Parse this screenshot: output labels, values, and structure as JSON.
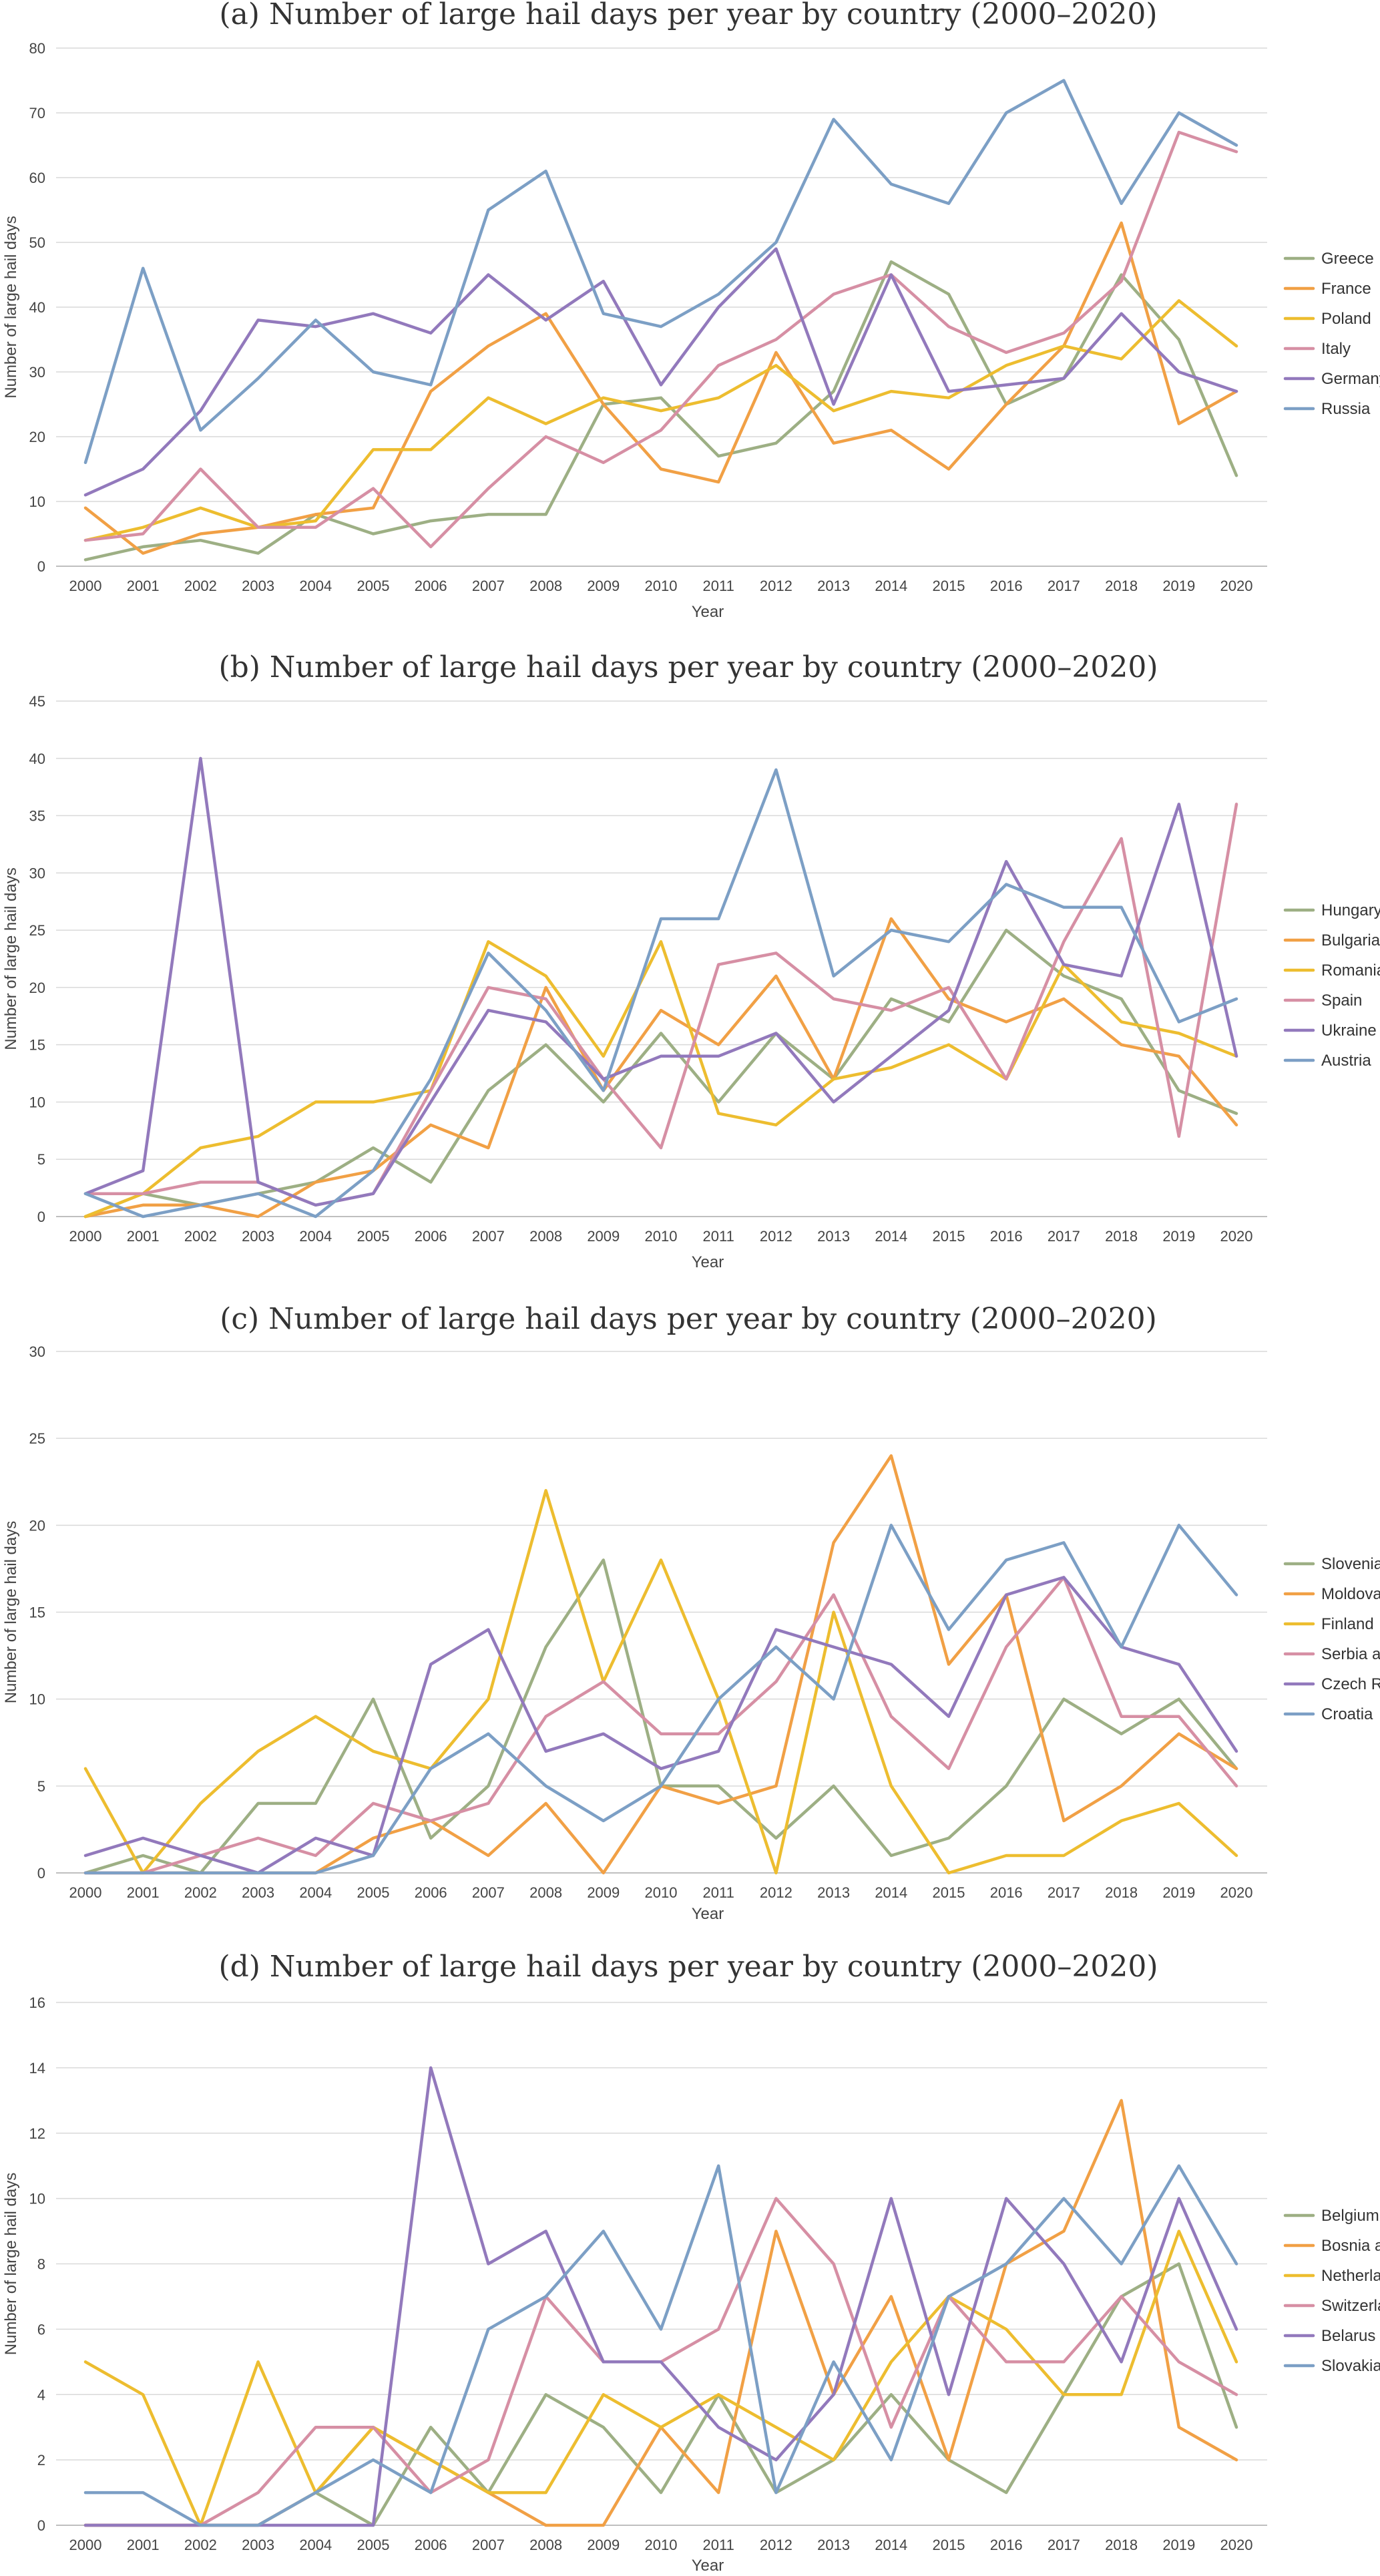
{
  "colors": {
    "green": "#9DAF84",
    "orange": "#F1A045",
    "yellow": "#EDBD2F",
    "pink": "#D68FA4",
    "purple": "#9279BC",
    "blue": "#7C9FC5"
  },
  "chart_data": [
    {
      "type": "line",
      "title": "(a) Number of large hail days per year by country (2000–2020)",
      "xlabel": "Year",
      "ylabel": "Number of large hail days",
      "ylim": [
        0,
        80
      ],
      "ytick_step": 10,
      "grid": true,
      "legend": "right",
      "x": [
        "2000",
        "2001",
        "2002",
        "2003",
        "2004",
        "2005",
        "2006",
        "2007",
        "2008",
        "2009",
        "2010",
        "2011",
        "2012",
        "2013",
        "2014",
        "2015",
        "2016",
        "2017",
        "2018",
        "2019",
        "2020"
      ],
      "series": [
        {
          "name": "Greece",
          "color": "#9DAF84",
          "values": [
            1,
            3,
            4,
            2,
            8,
            5,
            7,
            8,
            8,
            25,
            26,
            17,
            19,
            27,
            47,
            42,
            25,
            29,
            45,
            35,
            14
          ]
        },
        {
          "name": "France",
          "color": "#F1A045",
          "values": [
            9,
            2,
            5,
            6,
            8,
            9,
            27,
            34,
            39,
            25,
            15,
            13,
            33,
            19,
            21,
            15,
            25,
            34,
            53,
            22,
            27
          ]
        },
        {
          "name": "Poland",
          "color": "#EDBD2F",
          "values": [
            4,
            6,
            9,
            6,
            7,
            18,
            18,
            26,
            22,
            26,
            24,
            26,
            31,
            24,
            27,
            26,
            31,
            34,
            32,
            41,
            34
          ]
        },
        {
          "name": "Italy",
          "color": "#D68FA4",
          "values": [
            4,
            5,
            15,
            6,
            6,
            12,
            3,
            12,
            20,
            16,
            21,
            31,
            35,
            42,
            45,
            37,
            33,
            36,
            44,
            67,
            64
          ]
        },
        {
          "name": "Germany",
          "color": "#9279BC",
          "values": [
            11,
            15,
            24,
            38,
            37,
            39,
            36,
            45,
            38,
            44,
            28,
            40,
            49,
            25,
            45,
            27,
            28,
            29,
            39,
            30,
            27
          ]
        },
        {
          "name": "Russia",
          "color": "#7C9FC5",
          "values": [
            16,
            46,
            21,
            29,
            38,
            30,
            28,
            55,
            61,
            39,
            37,
            42,
            50,
            69,
            59,
            56,
            70,
            75,
            56,
            70,
            65
          ]
        }
      ]
    },
    {
      "type": "line",
      "title": "(b) Number of large hail days per year by country (2000–2020)",
      "xlabel": "Year",
      "ylabel": "Number of large hail days",
      "ylim": [
        0,
        45
      ],
      "ytick_step": 5,
      "grid": true,
      "legend": "right",
      "x": [
        "2000",
        "2001",
        "2002",
        "2003",
        "2004",
        "2005",
        "2006",
        "2007",
        "2008",
        "2009",
        "2010",
        "2011",
        "2012",
        "2013",
        "2014",
        "2015",
        "2016",
        "2017",
        "2018",
        "2019",
        "2020"
      ],
      "series": [
        {
          "name": "Hungary",
          "color": "#9DAF84",
          "values": [
            0,
            2,
            1,
            2,
            3,
            6,
            3,
            11,
            15,
            10,
            16,
            10,
            16,
            12,
            19,
            17,
            25,
            21,
            19,
            11,
            9
          ]
        },
        {
          "name": "Bulgaria",
          "color": "#F1A045",
          "values": [
            0,
            1,
            1,
            0,
            3,
            4,
            8,
            6,
            20,
            11,
            18,
            15,
            21,
            12,
            26,
            19,
            17,
            19,
            15,
            14,
            8
          ]
        },
        {
          "name": "Romania",
          "color": "#EDBD2F",
          "values": [
            0,
            2,
            6,
            7,
            10,
            10,
            11,
            24,
            21,
            14,
            24,
            9,
            8,
            12,
            13,
            15,
            12,
            22,
            17,
            16,
            14
          ]
        },
        {
          "name": "Spain",
          "color": "#D68FA4",
          "values": [
            2,
            2,
            3,
            3,
            1,
            2,
            11,
            20,
            19,
            12,
            6,
            22,
            23,
            19,
            18,
            20,
            12,
            24,
            33,
            7,
            36
          ]
        },
        {
          "name": "Ukraine",
          "color": "#9279BC",
          "values": [
            2,
            4,
            40,
            3,
            1,
            2,
            10,
            18,
            17,
            12,
            14,
            14,
            16,
            10,
            14,
            18,
            31,
            22,
            21,
            36,
            14
          ]
        },
        {
          "name": "Austria",
          "color": "#7C9FC5",
          "values": [
            2,
            0,
            1,
            2,
            0,
            4,
            12,
            23,
            18,
            11,
            26,
            26,
            39,
            21,
            25,
            24,
            29,
            27,
            27,
            17,
            19
          ]
        }
      ]
    },
    {
      "type": "line",
      "title": "(c) Number of large hail days per year by country (2000–2020)",
      "xlabel": "Year",
      "ylabel": "Number of large hail days",
      "ylim": [
        0,
        30
      ],
      "ytick_step": 5,
      "grid": true,
      "legend": "right",
      "x": [
        "2000",
        "2001",
        "2002",
        "2003",
        "2004",
        "2005",
        "2006",
        "2007",
        "2008",
        "2009",
        "2010",
        "2011",
        "2012",
        "2013",
        "2014",
        "2015",
        "2016",
        "2017",
        "2018",
        "2019",
        "2020"
      ],
      "series": [
        {
          "name": "Slovenia",
          "color": "#9DAF84",
          "values": [
            0,
            1,
            0,
            4,
            4,
            10,
            2,
            5,
            13,
            18,
            5,
            5,
            2,
            5,
            1,
            2,
            5,
            10,
            8,
            10,
            6
          ]
        },
        {
          "name": "Moldova",
          "color": "#F1A045",
          "values": [
            0,
            0,
            0,
            0,
            0,
            2,
            3,
            1,
            4,
            0,
            5,
            4,
            5,
            19,
            24,
            12,
            16,
            3,
            5,
            8,
            6
          ]
        },
        {
          "name": "Finland",
          "color": "#EDBD2F",
          "values": [
            6,
            0,
            4,
            7,
            9,
            7,
            6,
            10,
            22,
            11,
            18,
            10,
            0,
            15,
            5,
            0,
            1,
            1,
            3,
            4,
            1
          ]
        },
        {
          "name": "Serbia and Kosovo",
          "color": "#D68FA4",
          "values": [
            0,
            0,
            1,
            2,
            1,
            4,
            3,
            4,
            9,
            11,
            8,
            8,
            11,
            16,
            9,
            6,
            13,
            17,
            9,
            9,
            5
          ]
        },
        {
          "name": "Czech Republic",
          "color": "#9279BC",
          "values": [
            1,
            2,
            1,
            0,
            2,
            1,
            12,
            14,
            7,
            8,
            6,
            7,
            14,
            13,
            12,
            9,
            16,
            17,
            13,
            12,
            7
          ]
        },
        {
          "name": "Croatia",
          "color": "#7C9FC5",
          "values": [
            0,
            0,
            0,
            0,
            0,
            1,
            6,
            8,
            5,
            3,
            5,
            10,
            13,
            10,
            20,
            14,
            18,
            19,
            13,
            20,
            16
          ]
        }
      ]
    },
    {
      "type": "line",
      "title": "(d) Number of large hail days per year by country (2000–2020)",
      "xlabel": "Year",
      "ylabel": "Number of large hail days",
      "ylim": [
        0,
        16
      ],
      "ytick_step": 2,
      "grid": true,
      "legend": "right",
      "x": [
        "2000",
        "2001",
        "2002",
        "2003",
        "2004",
        "2005",
        "2006",
        "2007",
        "2008",
        "2009",
        "2010",
        "2011",
        "2012",
        "2013",
        "2014",
        "2015",
        "2016",
        "2017",
        "2018",
        "2019",
        "2020"
      ],
      "series": [
        {
          "name": "Belgium",
          "color": "#9DAF84",
          "values": [
            0,
            0,
            0,
            0,
            1,
            0,
            3,
            1,
            4,
            3,
            1,
            4,
            1,
            2,
            4,
            2,
            1,
            4,
            7,
            8,
            3
          ]
        },
        {
          "name": "Bosnia and Herzegovina",
          "color": "#F1A045",
          "values": [
            0,
            0,
            0,
            0,
            1,
            3,
            2,
            1,
            0,
            0,
            3,
            1,
            9,
            4,
            7,
            2,
            8,
            9,
            13,
            3,
            2
          ]
        },
        {
          "name": "Netherlands",
          "color": "#EDBD2F",
          "values": [
            5,
            4,
            0,
            5,
            1,
            3,
            2,
            1,
            1,
            4,
            3,
            4,
            3,
            2,
            5,
            7,
            6,
            4,
            4,
            9,
            5
          ]
        },
        {
          "name": "Switzerland",
          "color": "#D68FA4",
          "values": [
            0,
            0,
            0,
            1,
            3,
            3,
            1,
            2,
            7,
            5,
            5,
            6,
            10,
            8,
            3,
            7,
            5,
            5,
            7,
            5,
            4
          ]
        },
        {
          "name": "Belarus",
          "color": "#9279BC",
          "values": [
            0,
            0,
            0,
            0,
            0,
            0,
            14,
            8,
            9,
            5,
            5,
            3,
            2,
            4,
            10,
            4,
            10,
            8,
            5,
            10,
            6
          ]
        },
        {
          "name": "Slovakia",
          "color": "#7C9FC5",
          "values": [
            1,
            1,
            0,
            0,
            1,
            2,
            1,
            6,
            7,
            9,
            6,
            11,
            1,
            5,
            2,
            7,
            8,
            10,
            8,
            11,
            8
          ]
        }
      ]
    }
  ]
}
